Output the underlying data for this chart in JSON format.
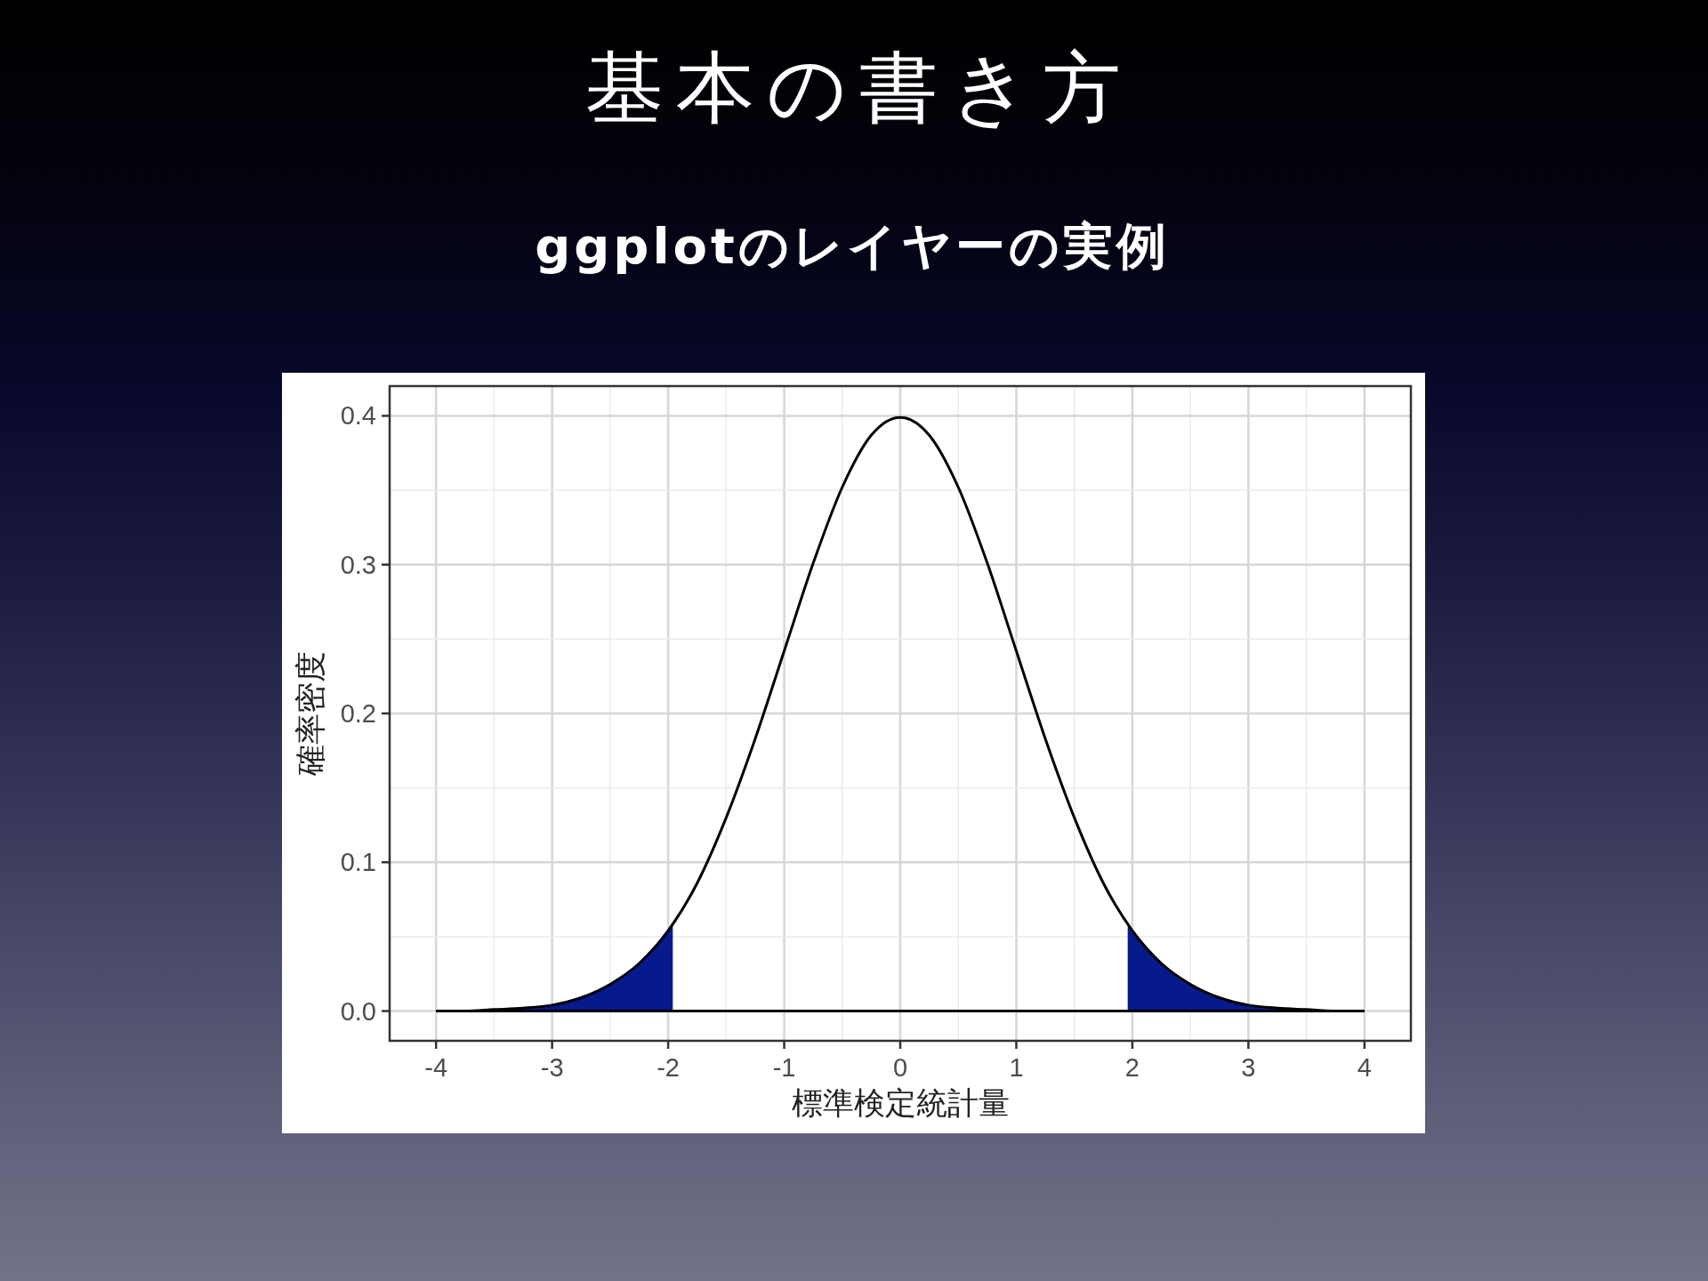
{
  "chart_data": {
    "type": "line",
    "title": "基本の書き方",
    "subtitle": "ggplotのレイヤーの実例",
    "xlabel": "標準検定統計量",
    "ylabel": "確率密度",
    "xlim": [
      -4.4,
      4.4
    ],
    "ylim": [
      -0.02,
      0.42
    ],
    "xticks": [
      -4,
      -3,
      -2,
      -1,
      0,
      1,
      2,
      3,
      4
    ],
    "yticks": [
      {
        "value": 0,
        "label": "0.0"
      },
      {
        "value": 0.1,
        "label": "0.1"
      },
      {
        "value": 0.2,
        "label": "0.2"
      },
      {
        "value": 0.3,
        "label": "0.3"
      },
      {
        "value": 0.4,
        "label": "0.4"
      }
    ],
    "grid": true,
    "ref_lines": [
      {
        "axis": "y",
        "value": 0,
        "color": "#000000"
      }
    ],
    "series": [
      {
        "type": "area",
        "color": "#071a8b",
        "x": [
          -4,
          -3.75,
          -3.5,
          -3.25,
          -3,
          -2.75,
          -2.5,
          -2.25,
          -2,
          -1.96
        ],
        "values": [
          0.0,
          0.0,
          0.001,
          0.002,
          0.004,
          0.009,
          0.018,
          0.032,
          0.054,
          0.058
        ]
      },
      {
        "type": "area",
        "color": "#071a8b",
        "x": [
          1.96,
          2,
          2.25,
          2.5,
          2.75,
          3,
          3.25,
          3.5,
          3.75,
          4
        ],
        "values": [
          0.058,
          0.054,
          0.032,
          0.018,
          0.009,
          0.004,
          0.002,
          0.001,
          0.0,
          0.0
        ]
      },
      {
        "color": "#000000",
        "x": [
          -4,
          -3.75,
          -3.5,
          -3.25,
          -3,
          -2.75,
          -2.5,
          -2.25,
          -2,
          -1.75,
          -1.5,
          -1.25,
          -1,
          -0.75,
          -0.5,
          -0.25,
          0,
          0.25,
          0.5,
          0.75,
          1,
          1.25,
          1.5,
          1.75,
          2,
          2.25,
          2.5,
          2.75,
          3,
          3.25,
          3.5,
          3.75,
          4
        ],
        "values": [
          0.0,
          0.0,
          0.001,
          0.002,
          0.004,
          0.009,
          0.018,
          0.032,
          0.054,
          0.086,
          0.13,
          0.183,
          0.242,
          0.301,
          0.352,
          0.387,
          0.399,
          0.387,
          0.352,
          0.301,
          0.242,
          0.183,
          0.13,
          0.086,
          0.054,
          0.032,
          0.018,
          0.009,
          0.004,
          0.002,
          0.001,
          0.0,
          0.0
        ]
      }
    ]
  }
}
